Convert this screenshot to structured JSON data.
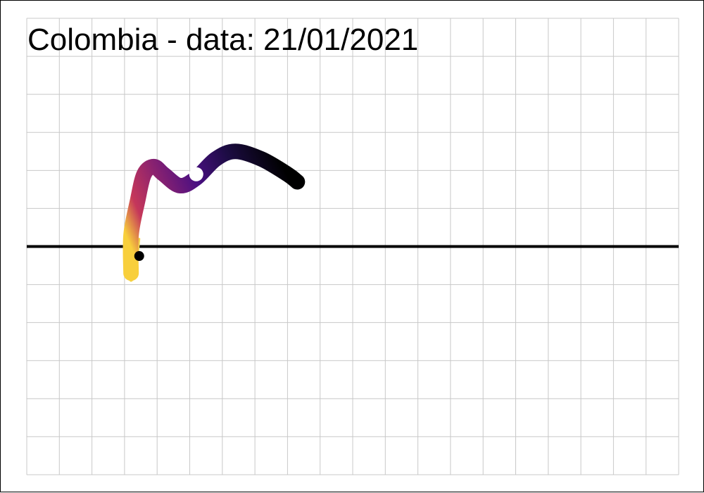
{
  "chart_data": {
    "type": "line",
    "title": "Colombia  - data: 21/01/2021",
    "xlabel": "",
    "ylabel": "",
    "grid": true,
    "xlim": [
      0,
      20
    ],
    "ylim": [
      -6,
      6
    ],
    "reference_line_y": 0,
    "trajectory": [
      {
        "x": 3.2,
        "y": -0.7
      },
      {
        "x": 3.2,
        "y": 0.3
      },
      {
        "x": 3.4,
        "y": 1.2
      },
      {
        "x": 3.6,
        "y": 1.9
      },
      {
        "x": 3.9,
        "y": 2.1
      },
      {
        "x": 4.2,
        "y": 1.9
      },
      {
        "x": 4.7,
        "y": 1.6
      },
      {
        "x": 5.2,
        "y": 1.8
      },
      {
        "x": 5.8,
        "y": 2.3
      },
      {
        "x": 6.4,
        "y": 2.5
      },
      {
        "x": 7.2,
        "y": 2.3
      },
      {
        "x": 8.0,
        "y": 1.9
      },
      {
        "x": 8.3,
        "y": 1.7
      }
    ],
    "yellow_tail": [
      {
        "x": 3.3,
        "y": 0.7
      },
      {
        "x": 3.2,
        "y": 0.1
      },
      {
        "x": 3.1,
        "y": -0.6
      },
      {
        "x": 3.2,
        "y": -0.9
      },
      {
        "x": 3.35,
        "y": -0.6
      },
      {
        "x": 3.45,
        "y": 0.2
      }
    ],
    "markers": [
      {
        "type": "start",
        "x": 3.45,
        "y": -0.25,
        "color": "#000000"
      },
      {
        "type": "current",
        "x": 5.2,
        "y": 1.9,
        "color": "#ffffff"
      }
    ],
    "colors": {
      "grid": "#c8c8c8",
      "reference_line": "#000000",
      "tail": "#f2d447",
      "gradient": [
        "#f8cf3c",
        "#b8355f",
        "#8a2270",
        "#4a0f82",
        "#1d0c45",
        "#000000"
      ]
    }
  }
}
